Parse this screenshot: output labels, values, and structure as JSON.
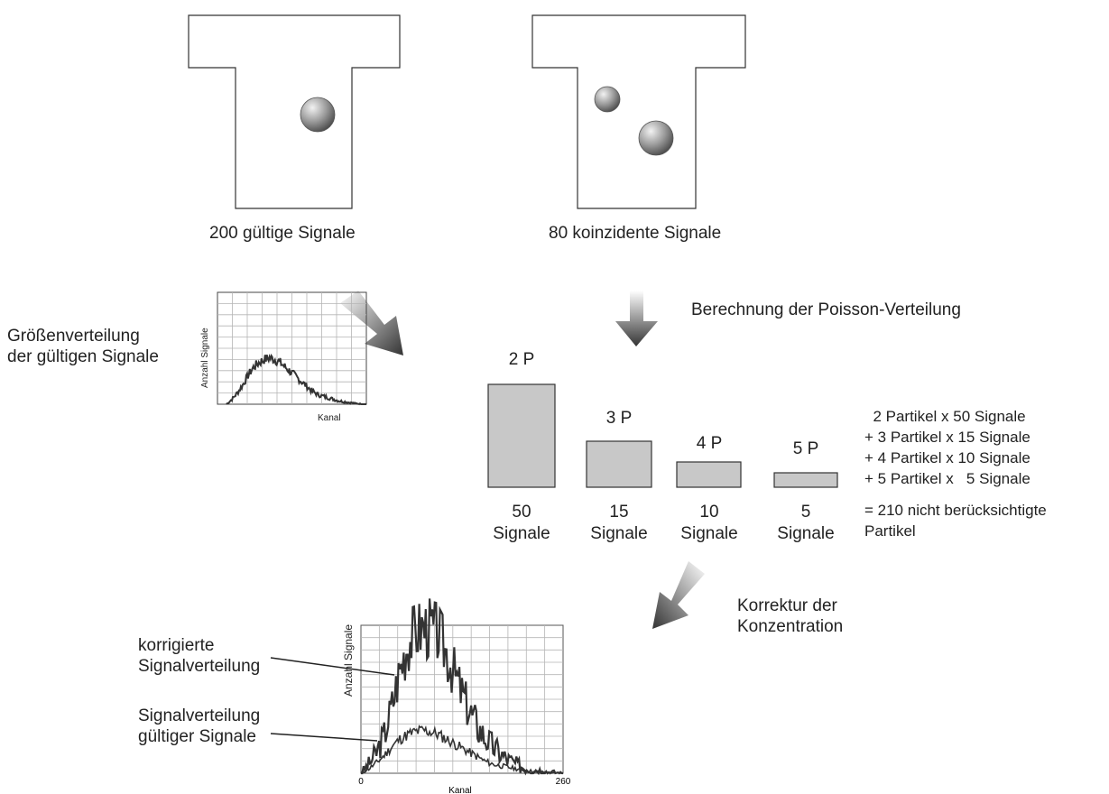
{
  "caption_valid": "200 gültige Signale",
  "caption_coincident": "80 koinzidente Signale",
  "poisson_label": "Berechnung der Poisson-Verteilung",
  "size_dist_label": [
    "Größenverteilung",
    "der gültigen Signale"
  ],
  "small_chart": {
    "ylabel": "Anzahl Signale",
    "xlabel": "Kanal"
  },
  "correction_label": [
    "Korrektur der",
    "Konzentration"
  ],
  "corrected_label": [
    "korrigierte",
    "Signalverteilung"
  ],
  "valid_dist_label": [
    "Signalverteilung",
    "gültiger Signale"
  ],
  "summation": {
    "lines": [
      "  2 Partikel x 50 Signale",
      "+ 3 Partikel x 15 Signale",
      "+ 4 Partikel x 10 Signale",
      "+ 5 Partikel x   5 Signale",
      "= 210 nicht berücksichtigte",
      "Partikel"
    ]
  },
  "colors": {
    "bar_fill": "#c8c8c8",
    "line": "#333333",
    "grid": "#b5b5b5"
  },
  "chart_data": [
    {
      "type": "bar",
      "categories": [
        "2 P",
        "3 P",
        "4 P",
        "5 P"
      ],
      "values": [
        50,
        15,
        10,
        5
      ],
      "value_labels": [
        "50",
        "15",
        "10",
        "5"
      ],
      "unit_label": "Signale"
    },
    {
      "type": "line",
      "xlabel": "Kanal",
      "ylabel": "Anzahl Signale",
      "x_ticks": [
        "0",
        "260"
      ],
      "xlim": [
        0,
        260
      ],
      "series": [
        {
          "x": [
            0,
            10,
            20,
            30,
            40,
            50,
            60,
            70,
            80,
            90,
            100,
            110,
            120,
            130,
            140,
            150,
            160,
            170,
            180,
            190,
            200,
            210,
            220,
            230,
            240,
            250,
            260
          ],
          "y": [
            0,
            6,
            14,
            26,
            46,
            70,
            88,
            96,
            99,
            98,
            94,
            82,
            68,
            54,
            42,
            32,
            24,
            18,
            13,
            9,
            6,
            4,
            3,
            2,
            1,
            0.5,
            0
          ]
        },
        {
          "x": [
            0,
            10,
            20,
            30,
            40,
            50,
            60,
            70,
            80,
            90,
            100,
            110,
            120,
            130,
            140,
            150,
            160,
            170,
            180,
            190,
            200,
            210,
            220,
            230,
            240,
            250,
            260
          ],
          "y": [
            0,
            3,
            7,
            12,
            18,
            23,
            26,
            28,
            29,
            28,
            26,
            23,
            20,
            17,
            14,
            11,
            8,
            6,
            5,
            4,
            3,
            2,
            1.5,
            1,
            0.5,
            0.2,
            0
          ]
        }
      ]
    }
  ]
}
